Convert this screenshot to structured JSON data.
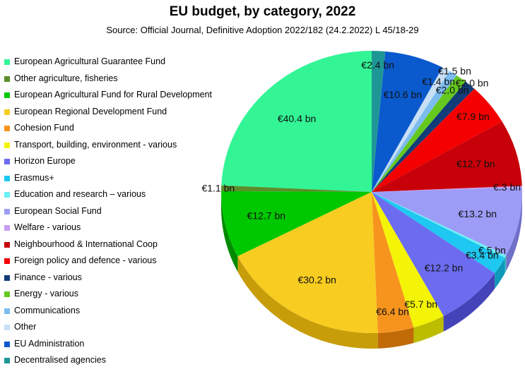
{
  "chart_data": {
    "type": "pie",
    "title": "EU budget, by category, 2022",
    "subtitle": "Source: Official Journal, Definitive Adoption 2022/182 (24.2.2022) L 45/18-29",
    "legend_position": "left",
    "slices": [
      {
        "name": "European Agricultural Guarantee Fund",
        "value": 40.4,
        "label": "€40.4 bn",
        "color": "#33f596",
        "side": "#22b06b"
      },
      {
        "name": "Other agriculture, fisheries",
        "value": 1.1,
        "label": "€1.1 bn",
        "color": "#5a8f2a",
        "side": "#3e6a1a"
      },
      {
        "name": "European Agricultural Fund for Rural Development",
        "value": 12.7,
        "label": "€12.7 bn",
        "color": "#00c800",
        "side": "#008a00"
      },
      {
        "name": "European Regional Development Fund",
        "value": 30.2,
        "label": "€30.2 bn",
        "color": "#f8cc20",
        "side": "#c79d0a"
      },
      {
        "name": "Cohesion Fund",
        "value": 6.4,
        "label": "€6.4 bn",
        "color": "#f7941d",
        "side": "#c06a08"
      },
      {
        "name": "Transport, building, environment - various",
        "value": 5.7,
        "label": "€5.7 bn",
        "color": "#f4f407",
        "side": "#bcbc00"
      },
      {
        "name": "Horizon Europe",
        "value": 12.2,
        "label": "€12.2 bn",
        "color": "#6c6cf0",
        "side": "#4444b8"
      },
      {
        "name": "Erasmus+",
        "value": 3.4,
        "label": "€3.4 bn",
        "color": "#1ec8f0",
        "side": "#0e98ba"
      },
      {
        "name": "Education and research – various",
        "value": 0.5,
        "label": "€.5 bn",
        "color": "#6ef0f5",
        "side": "#3cbcc0"
      },
      {
        "name": "European Social Fund",
        "value": 13.2,
        "label": "€13.2 bn",
        "color": "#9c9cf7",
        "side": "#7070c8"
      },
      {
        "name": "Welfare - various",
        "value": 0.3,
        "label": "€.3 bn",
        "color": "#c89cf0",
        "side": "#9a70c0"
      },
      {
        "name": "Neighbourhood & International Coop",
        "value": 12.7,
        "label": "€12.7 bn",
        "color": "#c8000a",
        "side": "#8e0006"
      },
      {
        "name": "Foreign policy and defence - various",
        "value": 7.9,
        "label": "€7.9 bn",
        "color": "#f40000",
        "side": "#b00000"
      },
      {
        "name": "Finance - various",
        "value": 2.0,
        "label": "€2.0 bn",
        "color": "#123c78",
        "side": "#0a2650"
      },
      {
        "name": "Energy - various",
        "value": 2.0,
        "label": "€2.0 bn",
        "color": "#64c81e",
        "side": "#469412"
      },
      {
        "name": "Communications",
        "value": 1.5,
        "label": "€1.5 bn",
        "color": "#7cbcf0",
        "side": "#5690c0"
      },
      {
        "name": "Other",
        "value": 1.4,
        "label": "€1.4 bn",
        "color": "#c8e0f5",
        "side": "#98b4cc"
      },
      {
        "name": "EU Administration",
        "value": 10.6,
        "label": "€10.6 bn",
        "color": "#0a5acd",
        "side": "#063e92"
      },
      {
        "name": "Decentralised agencies",
        "value": 2.4,
        "label": "€2.4 bn",
        "color": "#1e9696",
        "side": "#126c6c"
      }
    ]
  }
}
